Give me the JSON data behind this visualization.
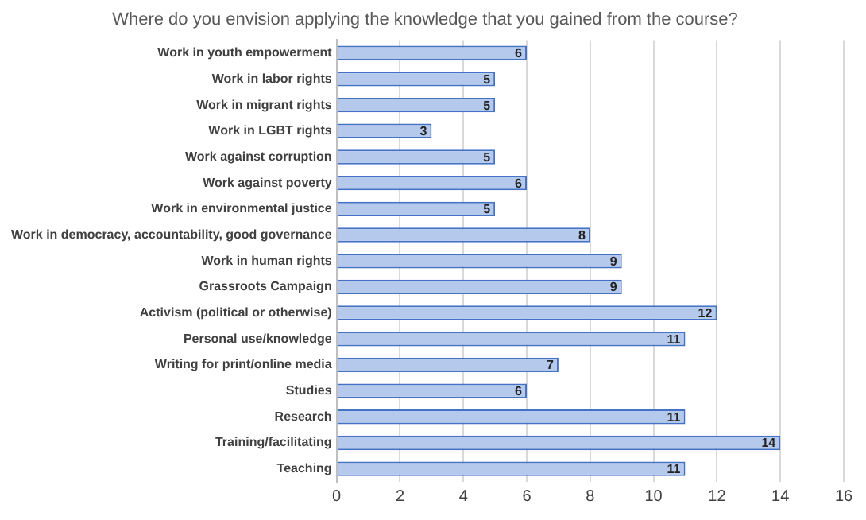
{
  "chart_data": {
    "type": "bar",
    "orientation": "horizontal",
    "title": "Where do you envision applying the knowledge that you gained from the course?",
    "categories": [
      "Work in youth empowerment",
      "Work in labor rights",
      "Work in migrant rights",
      "Work in LGBT rights",
      "Work against corruption",
      "Work against poverty",
      "Work in environmental justice",
      "Work in democracy, accountability, good governance",
      "Work in human rights",
      "Grassroots Campaign",
      "Activism (political or otherwise)",
      "Personal use/knowledge",
      "Writing for print/online media",
      "Studies",
      "Research",
      "Training/facilitating",
      "Teaching"
    ],
    "values": [
      6,
      5,
      5,
      3,
      5,
      6,
      5,
      8,
      9,
      9,
      12,
      11,
      7,
      6,
      11,
      14,
      11
    ],
    "color": "#b4c9ec",
    "xlim": [
      0,
      16
    ],
    "xticks": [
      0,
      2,
      4,
      6,
      8,
      10,
      12,
      14,
      16
    ],
    "grid": "x",
    "data_labels": true
  }
}
